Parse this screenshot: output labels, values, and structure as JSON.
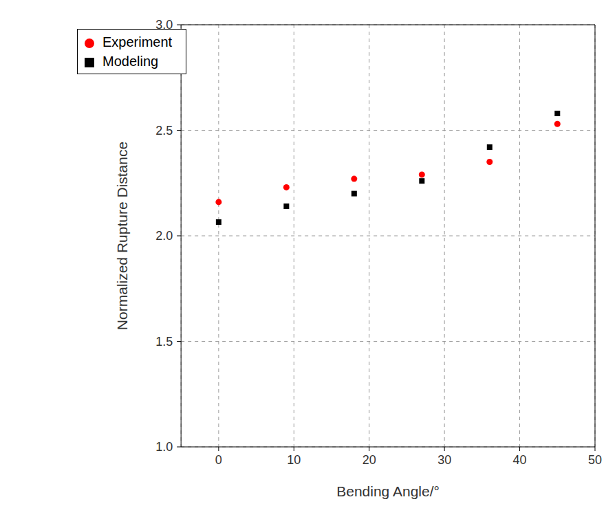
{
  "chart_data": {
    "type": "scatter",
    "x_label": "Bending Angle/°",
    "y_label": "Normalized Rupture Distance",
    "x": [
      0,
      9,
      18,
      27,
      36,
      45
    ],
    "series": [
      {
        "name": "Modeling",
        "color": "#000000",
        "marker": "square",
        "values": [
          2.065,
          2.14,
          2.2,
          2.26,
          2.42,
          2.58
        ]
      },
      {
        "name": "Experiment",
        "color": "#ff0000",
        "marker": "circle",
        "values": [
          2.16,
          2.23,
          2.27,
          2.29,
          2.35,
          2.53
        ]
      }
    ],
    "xlim": [
      -5,
      50
    ],
    "xticks": [
      0,
      10,
      20,
      30,
      40,
      50
    ],
    "ylim": [
      1,
      3
    ],
    "yticks": [
      {
        "value": 1,
        "label": "1.0"
      },
      1.5,
      {
        "value": 2,
        "label": "2.0"
      },
      2.5,
      {
        "value": 3,
        "label": "3.0"
      }
    ],
    "grid": true,
    "legend": "upper left"
  }
}
